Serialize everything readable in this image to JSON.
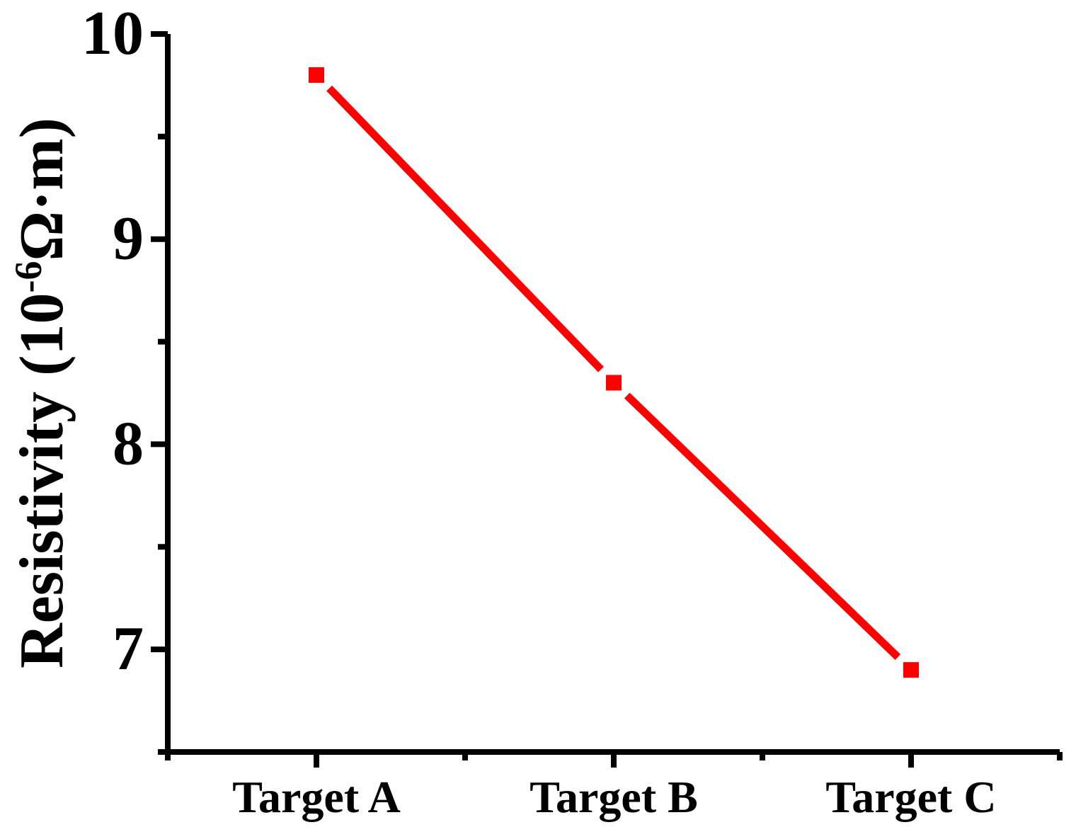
{
  "chart_data": {
    "type": "line",
    "categories": [
      "Target A",
      "Target B",
      "Target C"
    ],
    "values": [
      9.8,
      8.3,
      6.9
    ],
    "title": "",
    "xlabel": "",
    "ylabel": "Resistivity (10⁻⁶Ω·m)",
    "ylabel_parts": {
      "pre": "Resistivity (10",
      "sup": "-6",
      "post": "Ω·m)"
    },
    "ylim": [
      6.5,
      10.0
    ],
    "y_major_ticks": [
      10,
      9,
      8,
      7
    ],
    "y_minor_ticks": [
      9.5,
      8.5,
      7.5,
      6.5
    ],
    "x_minor_positions": [
      0.5,
      1.5,
      2.5,
      3.5
    ],
    "grid": false,
    "legend": "none",
    "line_color": "#FF0000",
    "marker": "filled-square",
    "marker_color": "#FF0000",
    "axis_color": "#000000",
    "text_color": "#000000"
  }
}
